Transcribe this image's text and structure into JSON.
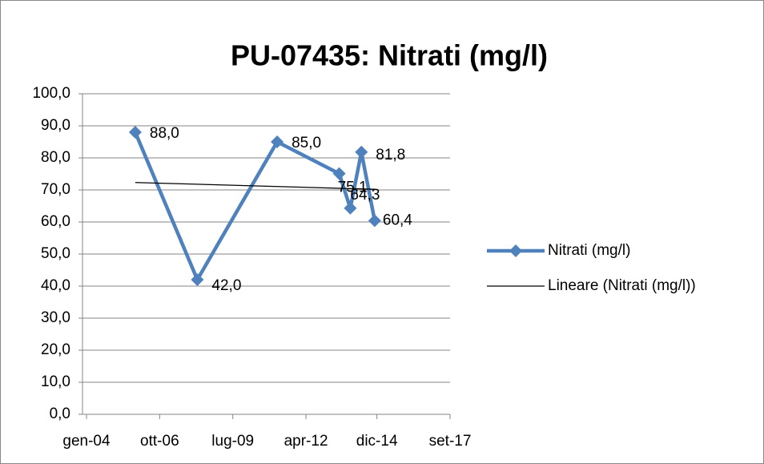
{
  "chart_data": {
    "type": "line",
    "title": "PU-07435: Nitrati (mg/l)",
    "x": [
      "2005-11",
      "2008-03",
      "2011-03",
      "2013-07",
      "2013-12",
      "2014-05",
      "2014-11"
    ],
    "series": [
      {
        "name": "Nitrati (mg/l)",
        "color": "#4f81bd",
        "values": [
          88.0,
          42.0,
          85.0,
          75.1,
          64.3,
          81.8,
          60.4
        ],
        "value_labels": [
          "88,0",
          "42,0",
          "85,0",
          "75,1",
          "64,3",
          "81,8",
          "60,4"
        ]
      }
    ],
    "trendline": {
      "name": "Lineare (Nitrati (mg/l))",
      "type": "linear",
      "color": "#000000"
    },
    "xlim": [
      "2004-01",
      "2017-09"
    ],
    "xticks": [
      {
        "value": "2004-01",
        "label": "gen-04"
      },
      {
        "value": "2006-10",
        "label": "ott-06"
      },
      {
        "value": "2009-07",
        "label": "lug-09"
      },
      {
        "value": "2012-04",
        "label": "apr-12"
      },
      {
        "value": "2014-12",
        "label": "dic-14"
      },
      {
        "value": "2017-09",
        "label": "set-17"
      }
    ],
    "ylim": [
      0,
      100
    ],
    "yticks": [
      {
        "value": 0,
        "label": "0,0"
      },
      {
        "value": 10,
        "label": "10,0"
      },
      {
        "value": 20,
        "label": "20,0"
      },
      {
        "value": 30,
        "label": "30,0"
      },
      {
        "value": 40,
        "label": "40,0"
      },
      {
        "value": 50,
        "label": "50,0"
      },
      {
        "value": 60,
        "label": "60,0"
      },
      {
        "value": 70,
        "label": "70,0"
      },
      {
        "value": 80,
        "label": "80,0"
      },
      {
        "value": 90,
        "label": "90,0"
      },
      {
        "value": 100,
        "label": "100,0"
      }
    ],
    "grid": true,
    "legend": "right"
  }
}
